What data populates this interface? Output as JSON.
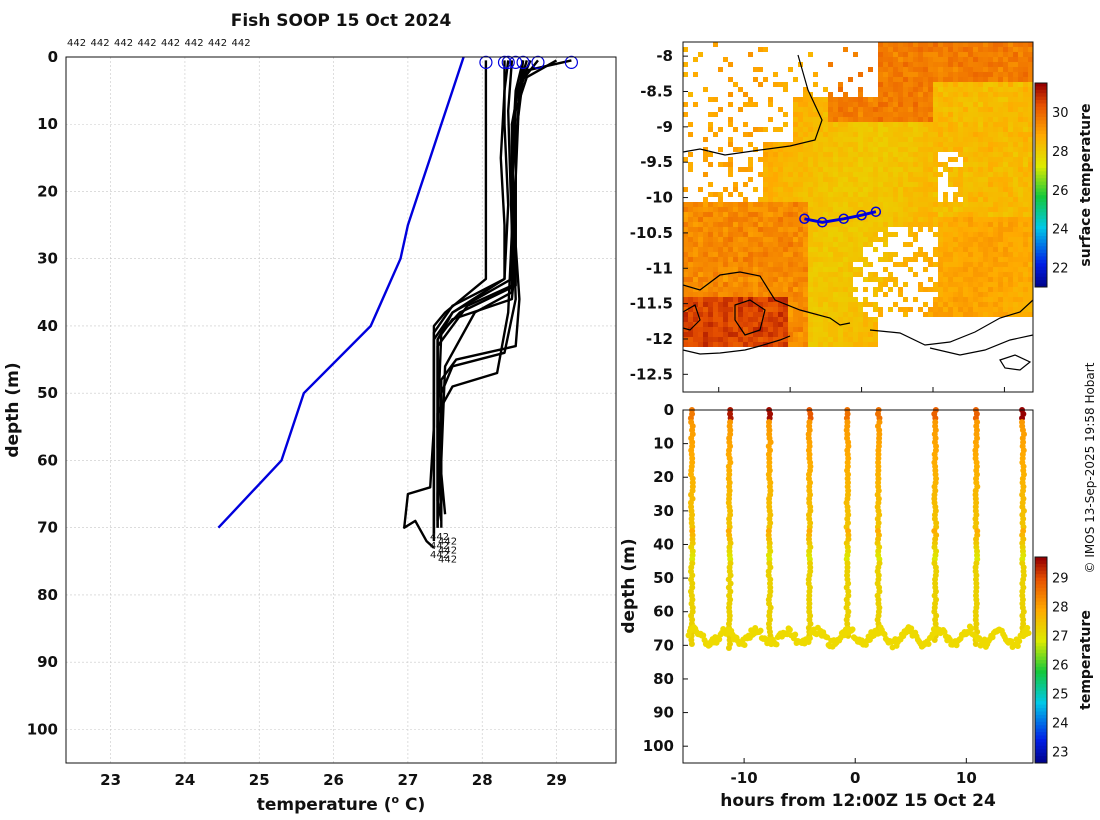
{
  "chart_data": [
    {
      "type": "line",
      "title": "Fish SOOP 15 Oct 2024",
      "xlabel": "temperature (",
      "xlabel_sup": "o",
      "xlabel_tail": " C)",
      "ylabel": "depth (m)",
      "xlim": [
        22.4,
        29.8
      ],
      "ylim": [
        105,
        0
      ],
      "xticks": [
        23,
        24,
        25,
        26,
        27,
        28,
        29
      ],
      "yticks": [
        0,
        10,
        20,
        30,
        40,
        50,
        60,
        70,
        80,
        90,
        100
      ],
      "top_labels": [
        "442",
        "442",
        "442",
        "442",
        "442",
        "442",
        "442",
        "442"
      ],
      "end_labels": [
        "442",
        "442",
        "442",
        "442",
        "442",
        "442"
      ],
      "series": [
        {
          "name": "climatology",
          "color": "#0000dd",
          "points": [
            [
              27.75,
              0
            ],
            [
              27.6,
              5
            ],
            [
              27.45,
              10
            ],
            [
              27.3,
              15
            ],
            [
              27.15,
              20
            ],
            [
              27.0,
              25
            ],
            [
              26.9,
              30
            ],
            [
              26.5,
              40
            ],
            [
              25.6,
              50
            ],
            [
              25.3,
              60
            ],
            [
              24.45,
              70
            ]
          ]
        },
        {
          "name": "profile-1",
          "color": "#000000",
          "points": [
            [
              28.55,
              0.5
            ],
            [
              28.45,
              5
            ],
            [
              28.4,
              15
            ],
            [
              28.45,
              25
            ],
            [
              28.4,
              33
            ],
            [
              27.6,
              38
            ],
            [
              27.4,
              42
            ],
            [
              27.4,
              55
            ],
            [
              27.4,
              65
            ],
            [
              27.4,
              70
            ]
          ]
        },
        {
          "name": "profile-2",
          "color": "#000000",
          "points": [
            [
              28.35,
              0.5
            ],
            [
              28.3,
              5
            ],
            [
              28.25,
              15
            ],
            [
              28.3,
              25
            ],
            [
              28.3,
              33
            ],
            [
              27.6,
              37
            ],
            [
              27.35,
              41
            ],
            [
              27.35,
              55
            ],
            [
              27.35,
              65
            ],
            [
              27.35,
              71
            ]
          ]
        },
        {
          "name": "profile-3",
          "color": "#000000",
          "points": [
            [
              28.05,
              0.5
            ],
            [
              28.05,
              10
            ],
            [
              28.05,
              20
            ],
            [
              28.05,
              33
            ],
            [
              27.5,
              38
            ],
            [
              27.35,
              40
            ],
            [
              27.35,
              55
            ],
            [
              27.3,
              64
            ],
            [
              27.0,
              65
            ],
            [
              26.95,
              70
            ],
            [
              27.1,
              69
            ],
            [
              27.25,
              72
            ],
            [
              27.35,
              73
            ]
          ]
        },
        {
          "name": "profile-4",
          "color": "#000000",
          "points": [
            [
              29.2,
              0.5
            ],
            [
              28.6,
              2
            ],
            [
              28.5,
              5
            ],
            [
              28.45,
              15
            ],
            [
              28.45,
              25
            ],
            [
              28.45,
              34
            ],
            [
              27.7,
              38
            ],
            [
              27.45,
              41
            ],
            [
              27.4,
              55
            ],
            [
              27.45,
              65
            ],
            [
              27.45,
              70
            ]
          ]
        },
        {
          "name": "profile-5",
          "color": "#000000",
          "points": [
            [
              28.75,
              0.5
            ],
            [
              28.5,
              4
            ],
            [
              28.4,
              10
            ],
            [
              28.4,
              20
            ],
            [
              28.45,
              30
            ],
            [
              28.4,
              36
            ],
            [
              27.6,
              39
            ],
            [
              27.4,
              42
            ],
            [
              27.4,
              60
            ],
            [
              27.4,
              69
            ]
          ]
        },
        {
          "name": "profile-6",
          "color": "#000000",
          "points": [
            [
              29.0,
              0.5
            ],
            [
              28.6,
              3
            ],
            [
              28.45,
              8
            ],
            [
              28.4,
              20
            ],
            [
              28.4,
              34
            ],
            [
              27.8,
              37
            ],
            [
              27.4,
              43
            ],
            [
              27.4,
              58
            ],
            [
              27.45,
              68
            ]
          ]
        },
        {
          "name": "profile-7",
          "color": "#000000",
          "points": [
            [
              28.3,
              0.5
            ],
            [
              28.3,
              10
            ],
            [
              28.35,
              22
            ],
            [
              28.3,
              33
            ],
            [
              27.6,
              38
            ],
            [
              27.35,
              42
            ],
            [
              27.35,
              60
            ],
            [
              27.35,
              72
            ]
          ]
        },
        {
          "name": "profile-8",
          "color": "#000000",
          "points": [
            [
              28.55,
              0.5
            ],
            [
              28.5,
              5
            ],
            [
              28.45,
              18
            ],
            [
              28.4,
              35
            ],
            [
              27.9,
              38
            ],
            [
              27.5,
              46
            ],
            [
              27.45,
              60
            ],
            [
              27.45,
              68
            ]
          ]
        },
        {
          "name": "profile-9",
          "color": "#000000",
          "points": [
            [
              28.6,
              0.5
            ],
            [
              28.45,
              6
            ],
            [
              28.4,
              20
            ],
            [
              28.45,
              36
            ],
            [
              28.3,
              44
            ],
            [
              27.6,
              46
            ],
            [
              27.45,
              50
            ],
            [
              27.4,
              65
            ],
            [
              27.4,
              70
            ]
          ]
        },
        {
          "name": "profile-10",
          "color": "#000000",
          "points": [
            [
              28.4,
              0.5
            ],
            [
              28.35,
              8
            ],
            [
              28.4,
              26
            ],
            [
              28.35,
              38
            ],
            [
              28.2,
              47
            ],
            [
              27.6,
              49
            ],
            [
              27.4,
              53
            ],
            [
              27.4,
              66
            ],
            [
              27.45,
              69
            ]
          ]
        },
        {
          "name": "profile-11",
          "color": "#000000",
          "points": [
            [
              28.65,
              0.5
            ],
            [
              28.55,
              3
            ],
            [
              28.45,
              12
            ],
            [
              28.45,
              28
            ],
            [
              28.5,
              36
            ],
            [
              28.45,
              43
            ],
            [
              27.65,
              45
            ],
            [
              27.45,
              48
            ],
            [
              27.45,
              62
            ],
            [
              27.5,
              68
            ]
          ]
        }
      ],
      "surface_markers": [
        28.05,
        28.3,
        28.35,
        28.45,
        28.55,
        28.75,
        29.2
      ]
    },
    {
      "type": "heatmap",
      "xlabel": "",
      "ylabel": "",
      "xlim": [
        131.5,
        136.4
      ],
      "ylim": [
        -12.75,
        -7.8
      ],
      "xticks": [
        132,
        133,
        134,
        135,
        136
      ],
      "yticks": [
        -8,
        -8.5,
        -9,
        -9.5,
        -10,
        -10.5,
        -11,
        -11.5,
        -12,
        -12.5
      ],
      "ytick_labels": [
        "-8",
        "-8.5",
        "-9",
        "-9.5",
        "-10",
        "-10.5",
        "-11",
        "-11.5",
        "-12",
        "-12.5"
      ],
      "colorbar_label": "surface temperature",
      "colorbar_range": [
        21,
        31.5
      ],
      "colorbar_ticks": [
        22,
        24,
        26,
        28,
        30
      ],
      "track": [
        [
          133.2,
          -10.3
        ],
        [
          133.45,
          -10.35
        ],
        [
          133.75,
          -10.3
        ],
        [
          134.0,
          -10.25
        ],
        [
          134.2,
          -10.2
        ]
      ]
    },
    {
      "type": "scatter",
      "xlabel": "hours from 12:00Z 15 Oct 24",
      "ylabel": "depth (m)",
      "xlim": [
        -15.5,
        16
      ],
      "ylim": [
        105,
        0
      ],
      "xticks": [
        -10,
        0,
        10
      ],
      "yticks": [
        0,
        10,
        20,
        30,
        40,
        50,
        60,
        70,
        80,
        90,
        100
      ],
      "colorbar_label": "temperature",
      "colorbar_range": [
        22.6,
        29.7
      ],
      "colorbar_ticks": [
        23,
        24,
        25,
        26,
        27,
        28,
        29
      ],
      "casts_hours": [
        -14.7,
        -11.3,
        -7.7,
        -4.1,
        -0.7,
        2.1,
        7.2,
        10.9,
        15.1
      ],
      "cast_max_depth": [
        70,
        72,
        69,
        68,
        68,
        67,
        69,
        70,
        67
      ]
    }
  ],
  "credit": "© IMOS 13-Sep-2025 19:58 Hobart"
}
